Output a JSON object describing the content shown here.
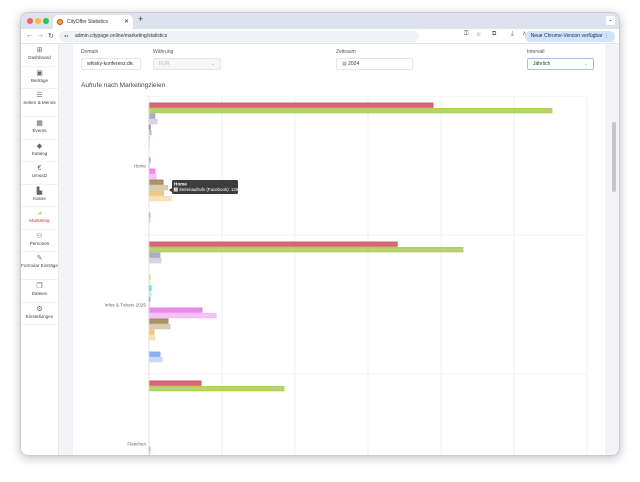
{
  "browser": {
    "tab_title": "CityOffer Statistics",
    "url": "admin.citypage.online/marketing/statistics",
    "update_label": "Neue Chrome-Version verfügbar"
  },
  "sidebar": {
    "items": [
      {
        "label": "Dashboard",
        "icon": "grid-icon",
        "glyph": "⊞"
      },
      {
        "label": "Beiträge",
        "icon": "newspaper-icon",
        "glyph": "▣"
      },
      {
        "label": "Seiten & Menüs",
        "icon": "menu-icon",
        "glyph": "☰"
      },
      {
        "label": "Events",
        "icon": "calendar-icon",
        "glyph": "▦"
      },
      {
        "label": "Katalog",
        "icon": "tags-icon",
        "glyph": "◆"
      },
      {
        "label": "Umsatz",
        "icon": "euro-icon",
        "glyph": "€"
      },
      {
        "label": "Kasse",
        "icon": "cash-register-icon",
        "glyph": "▙"
      },
      {
        "label": "Marketing",
        "icon": "chart-line-icon",
        "glyph": "⩘",
        "active": true
      },
      {
        "label": "Personen",
        "icon": "users-icon",
        "glyph": "⚇"
      },
      {
        "label": "Formular Einträge",
        "icon": "edit-icon",
        "glyph": "✎"
      },
      {
        "label": "Dateien",
        "icon": "files-icon",
        "glyph": "❐"
      },
      {
        "label": "Einstellungen",
        "icon": "gear-icon",
        "glyph": "⚙"
      }
    ]
  },
  "filters": {
    "domain": {
      "label": "Domain",
      "value": "whisky-konferenz.de"
    },
    "currency": {
      "label": "Währung",
      "value": "EUR"
    },
    "period": {
      "label": "Zeitraum",
      "value": "2024"
    },
    "interval": {
      "label": "Intervall",
      "value": "Jährlich"
    }
  },
  "chart_title": "Aufrufe nach Marketingzielen",
  "tooltip": {
    "title": "Home",
    "series": "Seitenaufrufe (Facebook)",
    "value": "1264"
  },
  "chart_data": {
    "type": "bar",
    "orientation": "horizontal",
    "grid": true,
    "categories": [
      "Home",
      "Infos & Tickets 2025",
      "Flaschen"
    ],
    "xlim": [
      0,
      30000
    ],
    "colors": [
      "#d0505e",
      "#a8cc50",
      "#9f9fc4",
      "#cfcfe0",
      "#555555",
      "#b5b5b5",
      "#c8e040",
      "#e6f0a0",
      "#40d8e8",
      "#b0f0f5",
      "#a080f0",
      "#d8c8fa",
      "#e878e8",
      "#f4b8f4",
      "#a08050",
      "#d4c4a8",
      "#ecc070",
      "#f4ddb0",
      "#ffffff",
      "#ffffff",
      "#7aa6f0",
      "#c0d4fa"
    ],
    "series": [
      {
        "values": [
          19450,
          17000,
          3560
        ]
      },
      {
        "values": [
          27600,
          21500,
          9250
        ]
      },
      {
        "values": [
          400,
          750,
          0
        ]
      },
      {
        "values": [
          550,
          820,
          0
        ]
      },
      {
        "values": [
          70,
          0,
          0
        ]
      },
      {
        "values": [
          140,
          0,
          0
        ]
      },
      {
        "values": [
          30,
          60,
          0
        ]
      },
      {
        "values": [
          30,
          30,
          0
        ]
      },
      {
        "values": [
          0,
          140,
          0
        ]
      },
      {
        "values": [
          0,
          140,
          0
        ]
      },
      {
        "values": [
          70,
          60,
          0
        ]
      },
      {
        "values": [
          30,
          30,
          0
        ]
      },
      {
        "values": [
          400,
          3630,
          60
        ]
      },
      {
        "values": [
          480,
          4600,
          60
        ]
      },
      {
        "values": [
          960,
          1300,
          0
        ]
      },
      {
        "name": "Seitenaufrufe (Facebook)",
        "values": [
          1264,
          1440,
          0
        ]
      },
      {
        "values": [
          1000,
          340,
          0
        ]
      },
      {
        "values": [
          1500,
          400,
          0
        ]
      },
      {
        "values": [
          0,
          0,
          0
        ]
      },
      {
        "values": [
          0,
          0,
          0
        ]
      },
      {
        "values": [
          60,
          750,
          0
        ]
      },
      {
        "values": [
          60,
          890,
          0
        ]
      }
    ]
  }
}
